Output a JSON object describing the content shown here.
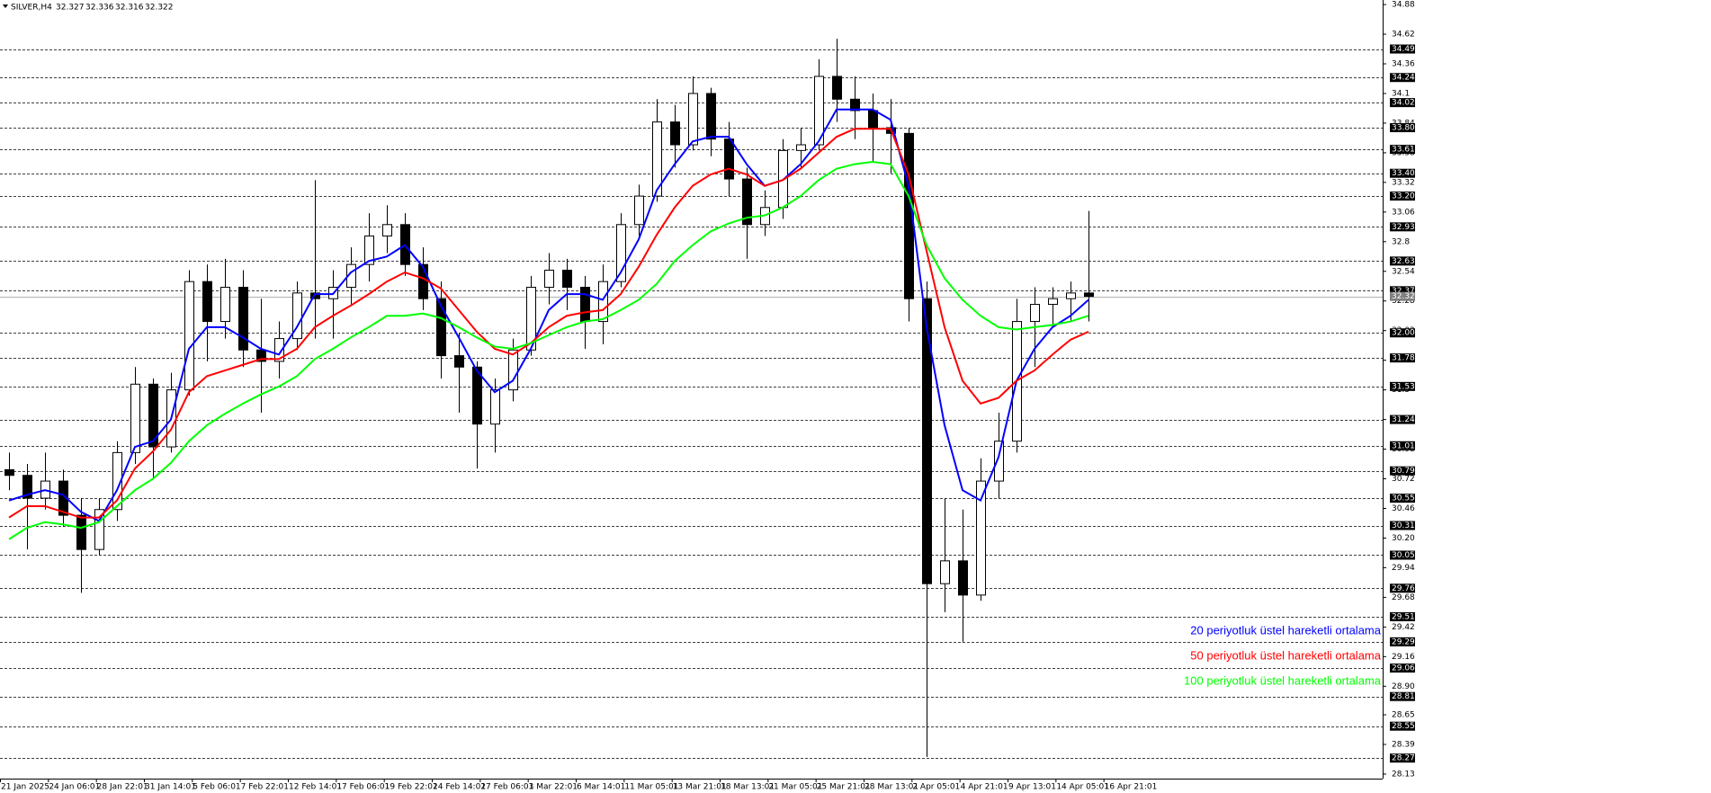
{
  "chart_data": {
    "type": "candlestick",
    "title": "SILVER,H4",
    "quote": [
      32.327,
      32.336,
      32.316,
      32.322
    ],
    "open": [
      30.8,
      30.75,
      30.55,
      30.7,
      30.4,
      30.1,
      30.45,
      30.95,
      31.55,
      31.0,
      31.5,
      32.45,
      32.1,
      32.4,
      31.85,
      31.75,
      31.95,
      32.35,
      32.3,
      32.4,
      32.6,
      32.85,
      32.95,
      32.6,
      32.3,
      31.8,
      31.7,
      31.2,
      31.5,
      31.85,
      32.4,
      32.55,
      32.4,
      32.1,
      32.45,
      32.95,
      33.2,
      33.85,
      33.65,
      34.1,
      33.7,
      33.35,
      32.95,
      33.1,
      33.6,
      33.65,
      34.25,
      34.05,
      33.95,
      33.8,
      33.75,
      32.3,
      29.8,
      30.0,
      29.7,
      30.7,
      31.05,
      32.1,
      32.25,
      32.3,
      32.35
    ],
    "high": [
      30.95,
      30.85,
      30.95,
      30.8,
      30.55,
      30.55,
      31.05,
      31.7,
      31.6,
      31.65,
      32.55,
      32.6,
      32.65,
      32.55,
      32.3,
      32.1,
      32.45,
      33.34,
      32.55,
      32.75,
      33.05,
      33.12,
      33.05,
      32.75,
      32.45,
      32.0,
      31.75,
      31.6,
      31.95,
      32.5,
      32.7,
      32.65,
      32.5,
      32.6,
      33.05,
      33.3,
      34.05,
      34.0,
      34.25,
      34.15,
      33.85,
      33.45,
      33.25,
      33.7,
      33.8,
      34.4,
      34.58,
      34.25,
      34.1,
      34.05,
      33.8,
      32.45,
      30.55,
      30.45,
      30.9,
      31.3,
      32.3,
      32.4,
      32.4,
      32.45,
      33.07
    ],
    "low": [
      30.62,
      30.1,
      30.45,
      30.3,
      29.72,
      30.05,
      30.35,
      30.85,
      30.72,
      30.95,
      31.45,
      31.75,
      31.95,
      31.7,
      31.3,
      31.6,
      31.85,
      31.95,
      31.95,
      32.25,
      32.45,
      32.7,
      32.5,
      32.2,
      31.6,
      31.3,
      30.81,
      30.95,
      31.4,
      31.8,
      32.25,
      32.2,
      31.86,
      31.9,
      32.4,
      32.85,
      33.15,
      33.45,
      33.6,
      33.55,
      33.2,
      32.65,
      32.85,
      33.0,
      33.45,
      33.6,
      33.85,
      33.7,
      33.5,
      33.4,
      32.1,
      28.28,
      29.55,
      29.29,
      29.65,
      30.55,
      30.95,
      31.7,
      32.05,
      32.1,
      32.1
    ],
    "close": [
      30.75,
      30.55,
      30.7,
      30.4,
      30.1,
      30.45,
      30.95,
      31.55,
      31.0,
      31.5,
      32.45,
      32.1,
      32.4,
      31.85,
      31.75,
      31.95,
      32.35,
      32.3,
      32.4,
      32.6,
      32.85,
      32.95,
      32.6,
      32.3,
      31.8,
      31.7,
      31.2,
      31.5,
      31.85,
      32.4,
      32.55,
      32.4,
      32.1,
      32.45,
      32.95,
      33.2,
      33.85,
      33.65,
      34.1,
      33.7,
      33.35,
      32.95,
      33.1,
      33.6,
      33.65,
      34.25,
      34.05,
      33.95,
      33.8,
      33.75,
      32.3,
      29.8,
      30.0,
      29.7,
      30.7,
      31.05,
      32.1,
      32.25,
      32.3,
      32.35,
      32.32
    ],
    "series": [
      {
        "name": "20 periyotluk üstel hareketli ortalama",
        "color": "#0000ff",
        "values": [
          30.53,
          30.58,
          30.62,
          30.58,
          30.43,
          30.35,
          30.62,
          31.0,
          31.05,
          31.24,
          31.86,
          32.05,
          32.05,
          31.96,
          31.86,
          31.81,
          32.05,
          32.34,
          32.34,
          32.53,
          32.63,
          32.67,
          32.77,
          32.58,
          32.24,
          31.96,
          31.67,
          31.48,
          31.58,
          31.86,
          32.2,
          32.34,
          32.34,
          32.29,
          32.53,
          32.82,
          33.25,
          33.48,
          33.68,
          33.72,
          33.72,
          33.48,
          33.29,
          33.34,
          33.48,
          33.68,
          33.96,
          33.96,
          33.96,
          33.87,
          33.29,
          32.05,
          31.19,
          30.62,
          30.53,
          30.91,
          31.58,
          31.86,
          32.05,
          32.15,
          32.29
        ]
      },
      {
        "name": "50 periyotluk üstel hareketli ortalama",
        "color": "#ff0000",
        "values": [
          30.38,
          30.48,
          30.48,
          30.43,
          30.38,
          30.38,
          30.53,
          30.81,
          30.96,
          31.15,
          31.48,
          31.62,
          31.67,
          31.72,
          31.77,
          31.77,
          31.86,
          32.05,
          32.15,
          32.24,
          32.34,
          32.45,
          32.53,
          32.48,
          32.39,
          32.2,
          32.01,
          31.86,
          31.81,
          31.91,
          32.05,
          32.15,
          32.18,
          32.2,
          32.34,
          32.58,
          32.86,
          33.1,
          33.29,
          33.39,
          33.44,
          33.39,
          33.29,
          33.34,
          33.44,
          33.58,
          33.72,
          33.79,
          33.79,
          33.79,
          33.39,
          32.72,
          32.05,
          31.58,
          31.38,
          31.43,
          31.58,
          31.67,
          31.81,
          31.94,
          32.01
        ]
      },
      {
        "name": "100 periyotluk üstel hareketli ortalama",
        "color": "#00ff00",
        "values": [
          30.19,
          30.29,
          30.34,
          30.32,
          30.29,
          30.34,
          30.48,
          30.62,
          30.72,
          30.86,
          31.05,
          31.19,
          31.29,
          31.38,
          31.46,
          31.53,
          31.62,
          31.77,
          31.86,
          31.96,
          32.05,
          32.15,
          32.15,
          32.17,
          32.13,
          32.05,
          31.96,
          31.88,
          31.86,
          31.91,
          31.98,
          32.05,
          32.1,
          32.12,
          32.2,
          32.29,
          32.43,
          32.63,
          32.77,
          32.89,
          32.96,
          33.01,
          33.03,
          33.1,
          33.2,
          33.34,
          33.44,
          33.48,
          33.5,
          33.48,
          33.2,
          32.77,
          32.48,
          32.29,
          32.15,
          32.05,
          32.03,
          32.05,
          32.07,
          32.1,
          32.15
        ]
      }
    ],
    "ylim": [
      28.09,
      34.92
    ],
    "yticks": [
      34.88,
      34.62,
      34.36,
      34.1,
      33.84,
      33.58,
      33.32,
      33.06,
      32.8,
      32.54,
      32.28,
      32.02,
      31.76,
      31.5,
      31.24,
      30.98,
      30.72,
      30.46,
      {
        "value": 30.2,
        "label": "30.20"
      },
      29.94,
      29.68,
      29.42,
      29.16,
      {
        "value": 28.9,
        "label": "28.90"
      },
      28.65,
      28.39,
      28.13
    ],
    "levels": [
      34.49,
      34.24,
      34.02,
      {
        "value": 33.8,
        "label": "33.80"
      },
      33.61,
      {
        "value": 33.4,
        "label": "33.40"
      },
      {
        "value": 33.2,
        "label": "33.20"
      },
      32.93,
      32.63,
      32.37,
      {
        "value": 32,
        "label": "32.00"
      },
      31.78,
      31.53,
      31.24,
      31.01,
      30.79,
      30.55,
      30.31,
      30.05,
      29.76,
      29.51,
      29.29,
      29.06,
      28.81,
      28.55,
      28.27
    ],
    "current_price": 32.32,
    "x_labels": [
      "21 Jan 2025",
      "24 Jan 06:01",
      "28 Jan 22:01",
      "31 Jan 14:01",
      "5 Feb 06:01",
      "7 Feb 22:01",
      "12 Feb 14:01",
      "17 Feb 06:01",
      "19 Feb 22:01",
      "24 Feb 14:01",
      "27 Feb 06:01",
      "3 Mar 22:01",
      "6 Mar 14:01",
      "11 Mar 05:01",
      "13 Mar 21:01",
      "18 Mar 13:01",
      "21 Mar 05:01",
      "25 Mar 21:01",
      "28 Mar 13:01",
      "2 Apr 05:01",
      "4 Apr 21:01",
      "9 Apr 13:01",
      "14 Apr 05:01",
      "16 Apr 21:01"
    ]
  }
}
